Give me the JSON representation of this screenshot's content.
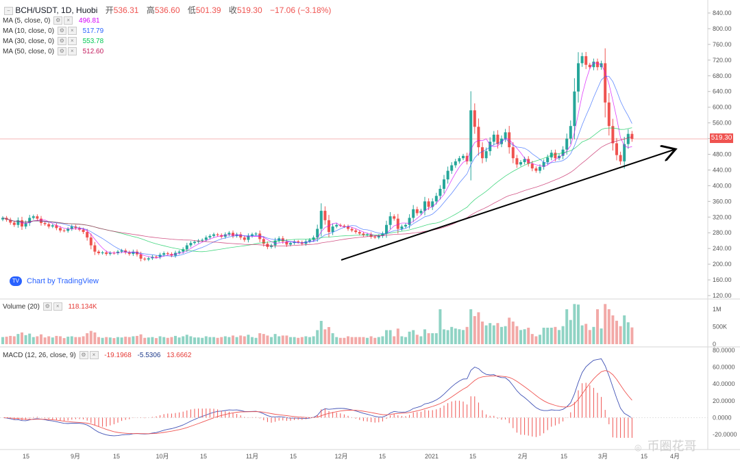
{
  "header": {
    "symbol": "BCH/USDT, 1D, Huobi",
    "ohlc": [
      {
        "label": "开",
        "value": "536.31"
      },
      {
        "label": "高",
        "value": "536.60"
      },
      {
        "label": "低",
        "value": "501.39"
      },
      {
        "label": "收",
        "value": "519.30"
      }
    ],
    "change": "−17.06 (−3.18%)"
  },
  "ma_legend": [
    {
      "label": "MA (5, close, 0)",
      "value": "496.81",
      "color": "#d500f9"
    },
    {
      "label": "MA (10, close, 0)",
      "value": "517.79",
      "color": "#2962ff"
    },
    {
      "label": "MA (30, close, 0)",
      "value": "553.78",
      "color": "#00c853"
    },
    {
      "label": "MA (50, close, 0)",
      "value": "512.60",
      "color": "#c2185b"
    }
  ],
  "volume_legend": {
    "label": "Volume (20)",
    "value": "118.134K"
  },
  "macd_legend": {
    "label": "MACD (12, 26, close, 9)",
    "values": [
      "-19.1968",
      "-5.5306",
      "13.6662"
    ],
    "colors": [
      "#e53935",
      "#1e3a8a",
      "#e53935"
    ]
  },
  "attribution": "Chart by TradingView",
  "last_price_tag": "519.30",
  "watermark": "币圈花哥",
  "colors": {
    "up": "#26a69a",
    "down": "#ef5350",
    "vol_up": "#8fd3c4",
    "vol_down": "#f2a9a7",
    "macd_line": "#3f51b5",
    "signal_line": "#ef5350",
    "hist": "#ef5350",
    "trendline": "#000000"
  },
  "chart_data": [
    {
      "type": "candlestick",
      "title": "BCH/USDT, 1D, Huobi",
      "x_tick_labels": [
        "15",
        "9月",
        "15",
        "10月",
        "15",
        "11月",
        "15",
        "12月",
        "15",
        "2021",
        "15",
        "2月",
        "15",
        "3月",
        "15",
        "4月"
      ],
      "y_tick_labels": [
        "840.00",
        "800.00",
        "760.00",
        "720.00",
        "680.00",
        "640.00",
        "600.00",
        "560.00",
        "520.00",
        "480.00",
        "440.00",
        "400.00",
        "360.00",
        "320.00",
        "280.00",
        "240.00",
        "200.00",
        "160.00",
        "120.00"
      ],
      "ylim": [
        120,
        840
      ],
      "last_price": 519.3,
      "series_close_approx": [
        318,
        313,
        306,
        300,
        312,
        296,
        305,
        318,
        322,
        316,
        305,
        302,
        296,
        299,
        292,
        286,
        285,
        290,
        296,
        292,
        288,
        282,
        268,
        248,
        232,
        228,
        230,
        226,
        229,
        228,
        232,
        235,
        230,
        226,
        232,
        225,
        214,
        212,
        215,
        219,
        218,
        224,
        228,
        226,
        222,
        229,
        232,
        238,
        248,
        254,
        257,
        260,
        262,
        268,
        272,
        276,
        274,
        270,
        276,
        280,
        272,
        276,
        268,
        262,
        272,
        276,
        278,
        264,
        252,
        244,
        248,
        260,
        266,
        258,
        250,
        254,
        258,
        256,
        252,
        258,
        262,
        268,
        290,
        336,
        312,
        282,
        296,
        300,
        298,
        296,
        290,
        286,
        282,
        278,
        274,
        276,
        270,
        268,
        272,
        278,
        300,
        322,
        316,
        290,
        296,
        300,
        318,
        340,
        330,
        336,
        360,
        346,
        360,
        374,
        392,
        416,
        438,
        452,
        462,
        470,
        476,
        462,
        592,
        550,
        498,
        470,
        488,
        512,
        530,
        506,
        520,
        536,
        498,
        470,
        454,
        460,
        468,
        456,
        444,
        438,
        448,
        460,
        472,
        484,
        470,
        476,
        492,
        520,
        552,
        640,
        712,
        730,
        708,
        702,
        716,
        702,
        712,
        612,
        552,
        508,
        478,
        462,
        506,
        532,
        519.3
      ]
    },
    {
      "type": "bar",
      "title": "Volume (20)",
      "y_tick_labels": [
        "1M",
        "500K",
        "0"
      ],
      "ylim": [
        0,
        1200000
      ],
      "last_value": "118.134K"
    },
    {
      "type": "line",
      "title": "MACD (12, 26, close, 9)",
      "y_tick_labels": [
        "80.0000",
        "60.0000",
        "40.0000",
        "20.0000",
        "0.0000",
        "-20.0000"
      ],
      "ylim": [
        -25,
        80
      ]
    },
    {
      "type": "trendline",
      "from": {
        "date_index": 68,
        "price": 234
      },
      "to": {
        "date_index": 164,
        "price": 522
      }
    }
  ]
}
